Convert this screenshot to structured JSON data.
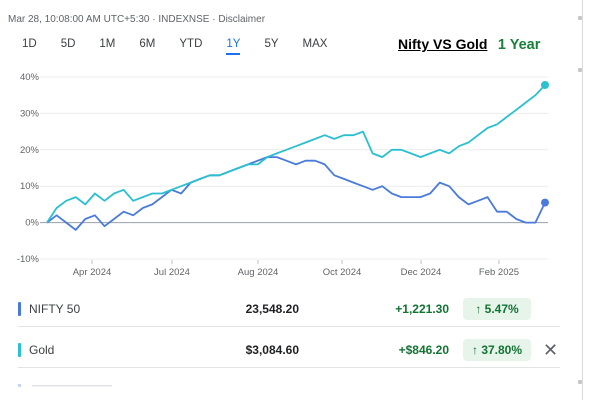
{
  "meta": "Mar 28, 10:08:00 AM UTC+5:30 · INDEXNSE · Disclaimer",
  "ranges": [
    "1D",
    "5D",
    "1M",
    "6M",
    "YTD",
    "1Y",
    "5Y",
    "MAX"
  ],
  "active_range": "1Y",
  "headline": {
    "vs": "Nifty VS  Gold",
    "period": "1 Year"
  },
  "chart_data": {
    "type": "line",
    "x_ticks": [
      "Apr 2024",
      "Jul 2024",
      "Aug 2024",
      "Oct 2024",
      "Dec 2024",
      "Feb 2025"
    ],
    "y_ticks": [
      "40%",
      "30%",
      "20%",
      "10%",
      "0%",
      "-10%"
    ],
    "ylim": [
      -10,
      40
    ],
    "grid": true,
    "series": [
      {
        "name": "NIFTY 50",
        "color": "#4a7bdc",
        "x": [
          0,
          1,
          2,
          3,
          4,
          5,
          6,
          7,
          8,
          9,
          10,
          11,
          12,
          13,
          14,
          15,
          16,
          17,
          18,
          19,
          20,
          21,
          22,
          23,
          24,
          25,
          26,
          27,
          28,
          29,
          30,
          31,
          32,
          33,
          34,
          35,
          36,
          37,
          38,
          39,
          40,
          41,
          42,
          43,
          44,
          45,
          46,
          47,
          48,
          49,
          50,
          51,
          52
        ],
        "values": [
          0,
          2,
          0,
          -2,
          1,
          2,
          -1,
          1,
          3,
          2,
          4,
          5,
          7,
          9,
          8,
          11,
          12,
          13,
          13,
          14,
          15,
          16,
          17,
          18,
          18,
          17,
          16,
          17,
          17,
          16,
          13,
          12,
          11,
          10,
          9,
          10,
          8,
          7,
          7,
          7,
          8,
          11,
          10,
          7,
          5,
          6,
          7,
          3,
          3,
          1,
          0,
          0,
          5.5
        ]
      },
      {
        "name": "Gold",
        "color": "#2bbfd0",
        "x": [
          0,
          1,
          2,
          3,
          4,
          5,
          6,
          7,
          8,
          9,
          10,
          11,
          12,
          13,
          14,
          15,
          16,
          17,
          18,
          19,
          20,
          21,
          22,
          23,
          24,
          25,
          26,
          27,
          28,
          29,
          30,
          31,
          32,
          33,
          34,
          35,
          36,
          37,
          38,
          39,
          40,
          41,
          42,
          43,
          44,
          45,
          46,
          47,
          48,
          49,
          50,
          51,
          52
        ],
        "values": [
          0,
          4,
          6,
          7,
          5,
          8,
          6,
          8,
          9,
          6,
          7,
          8,
          8,
          9,
          10,
          11,
          12,
          13,
          13,
          14,
          15,
          16,
          16,
          18,
          19,
          20,
          21,
          22,
          23,
          24,
          23,
          24,
          24,
          25,
          19,
          18,
          20,
          20,
          19,
          18,
          19,
          20,
          19,
          21,
          22,
          24,
          26,
          27,
          29,
          31,
          33,
          35,
          37.8
        ]
      }
    ]
  },
  "rows": [
    {
      "name": "NIFTY 50",
      "price": "23,548.20",
      "change": "+1,221.30",
      "pct": "5.47%",
      "color": "#4a7bdc",
      "arrow": "↑"
    },
    {
      "name": "Gold",
      "price": "$3,084.60",
      "change": "+$846.20",
      "pct": "37.80%",
      "color": "#2bbfd0",
      "arrow": "↑",
      "close": "✕"
    }
  ]
}
